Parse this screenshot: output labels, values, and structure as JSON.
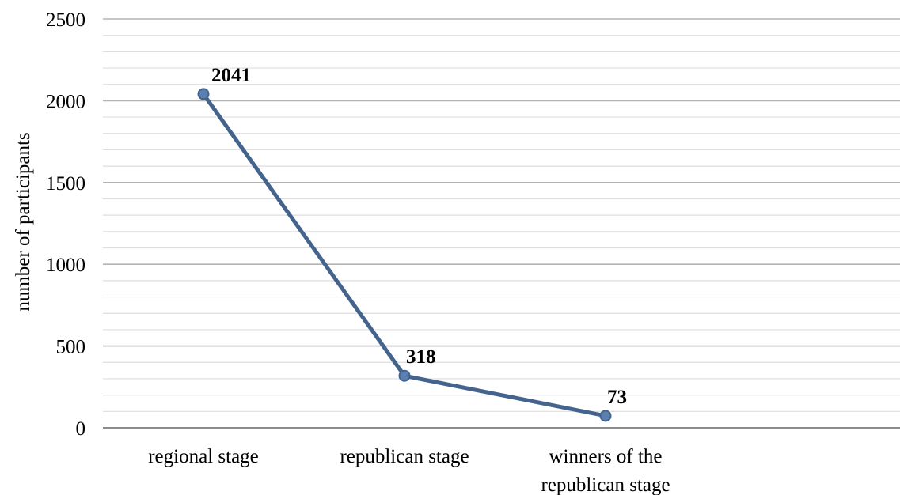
{
  "chart_data": {
    "type": "line",
    "title": "",
    "xlabel": "",
    "ylabel": "number of participants",
    "ylim": [
      0,
      2500
    ],
    "y_major_ticks": [
      0,
      500,
      1000,
      1500,
      2000,
      2500
    ],
    "y_minor_step": 100,
    "grid": true,
    "legend": "none",
    "categories": [
      [
        "regional stage"
      ],
      [
        "republican stage"
      ],
      [
        "winners of the",
        "republican stage"
      ]
    ],
    "series": [
      {
        "values": [
          2041,
          318,
          73
        ],
        "color": "#44648e",
        "marker_fill": "#5b7fae"
      }
    ],
    "data_labels": [
      "2041",
      "318",
      "73"
    ],
    "colors": {
      "major_grid": "#b3b3b3",
      "minor_grid": "#dedede",
      "axis_line": "#8c8c8c",
      "text": "#000000"
    }
  }
}
